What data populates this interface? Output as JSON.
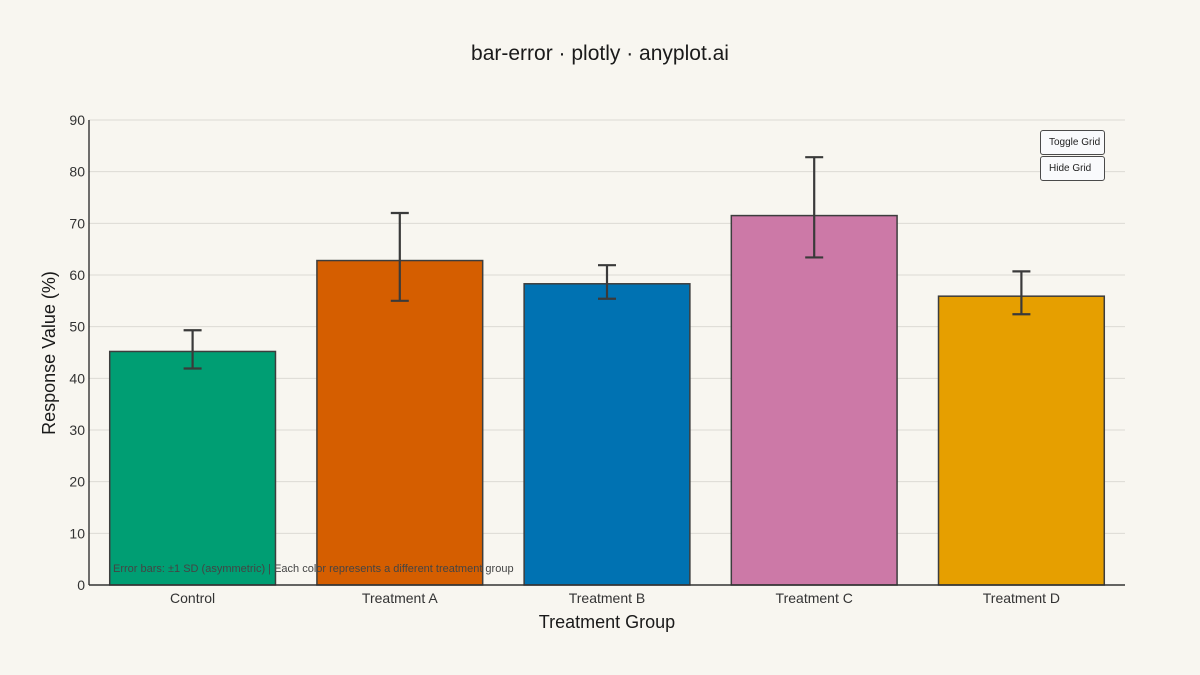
{
  "controls": {
    "toggle_grid_label": "Toggle Grid",
    "hide_grid_label": "Hide Grid"
  },
  "chart_data": {
    "type": "bar",
    "title": "bar-error · plotly · anyplot.ai",
    "xlabel": "Treatment Group",
    "ylabel": "Response Value (%)",
    "categories": [
      "Control",
      "Treatment A",
      "Treatment B",
      "Treatment C",
      "Treatment D"
    ],
    "values": [
      45.2,
      62.8,
      58.3,
      71.5,
      55.9
    ],
    "error_plus": [
      4.1,
      9.2,
      3.6,
      11.3,
      4.8
    ],
    "error_minus": [
      3.3,
      7.8,
      2.9,
      8.1,
      3.5
    ],
    "colors": [
      "#009e73",
      "#d55e00",
      "#0072b2",
      "#cc79a7",
      "#e69f00"
    ],
    "ylim": [
      0,
      90
    ],
    "yticks": [
      0,
      10,
      20,
      30,
      40,
      50,
      60,
      70,
      80,
      90
    ],
    "grid": true,
    "annotation": "Error bars: ±1 SD (asymmetric) | Each color represents a different treatment group"
  }
}
